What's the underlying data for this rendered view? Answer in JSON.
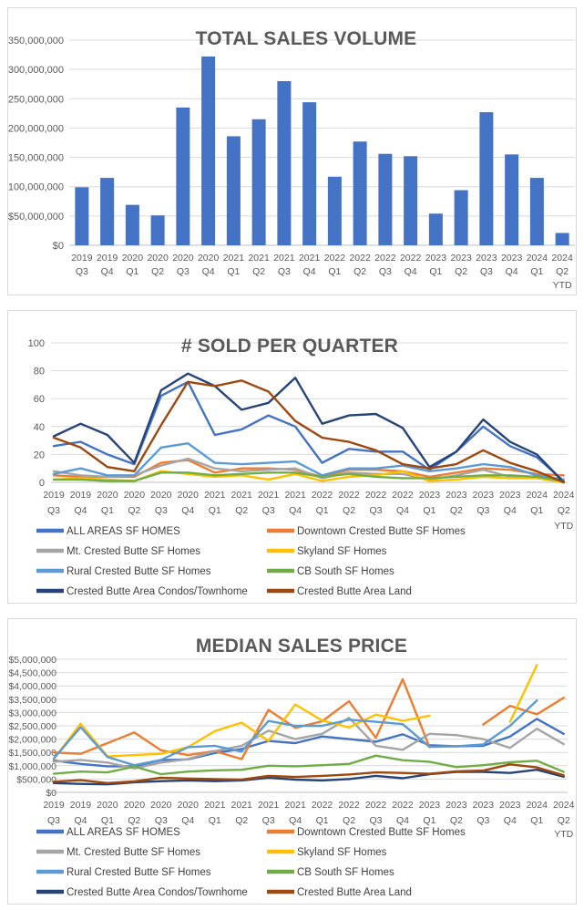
{
  "page": {
    "background": "#ffffff",
    "panel_border_color": "#d9d9d9",
    "gridline_color": "#d9d9d9",
    "axis_line_color": "#bfbfbf",
    "title_color": "#595959",
    "tick_label_color": "#595959"
  },
  "chart_data": [
    {
      "type": "bar",
      "title": "TOTAL SALES VOLUME",
      "ylabel": "",
      "xlabel": "",
      "ylim": [
        0,
        350000000
      ],
      "grid": true,
      "bar_color": "#4472C4",
      "y_tick_labels": [
        "$0",
        "$50,000,000",
        "$100,000,000",
        "$150,000,000",
        "$200,000,000",
        "$250,000,000",
        "$300,000,000",
        "$350,000,000"
      ],
      "categories": [
        "2019 Q3",
        "2019 Q4",
        "2020 Q1",
        "2020 Q2",
        "2020 Q3",
        "2020 Q4",
        "2021 Q1",
        "2021 Q2",
        "2021 Q3",
        "2021 Q4",
        "2022 Q1",
        "2022 Q2",
        "2022 Q3",
        "2022 Q4",
        "2023 Q1",
        "2023 Q2",
        "2023 Q3",
        "2023 Q4",
        "2024 Q1",
        "2024 Q2 YTD"
      ],
      "values": [
        99000000,
        115000000,
        69000000,
        51000000,
        235000000,
        322000000,
        186000000,
        215000000,
        280000000,
        244000000,
        117000000,
        177000000,
        156000000,
        152000000,
        54000000,
        94000000,
        227000000,
        155000000,
        115000000,
        21000000
      ]
    },
    {
      "type": "line",
      "title": "# SOLD PER QUARTER",
      "ylabel": "",
      "xlabel": "",
      "ylim": [
        0,
        100
      ],
      "grid": true,
      "legend_position": "bottom-two-columns",
      "y_tick_labels": [
        "0",
        "20",
        "40",
        "60",
        "80",
        "100"
      ],
      "categories": [
        "2019 Q3",
        "2019 Q4",
        "2020 Q1",
        "2020 Q2",
        "2020 Q3",
        "2020 Q4",
        "2021 Q1",
        "2021 Q2",
        "2021 Q3",
        "2021 Q4",
        "2022 Q1",
        "2022 Q2",
        "2022 Q3",
        "2022 Q4",
        "2023 Q1",
        "2023 Q2",
        "2023 Q3",
        "2023 Q4",
        "2024 Q1",
        "2024 Q2 YTD"
      ],
      "series": [
        {
          "name": "ALL AREAS SF HOMES",
          "color": "#4472C4",
          "values": [
            26,
            29,
            20,
            13,
            62,
            72,
            34,
            38,
            48,
            40,
            14,
            24,
            22,
            22,
            9,
            22,
            40,
            26,
            18,
            1
          ]
        },
        {
          "name": "Downtown Crested Butte SF Homes",
          "color": "#ED7D31",
          "values": [
            5,
            4,
            4,
            4,
            14,
            16,
            7,
            10,
            10,
            9,
            4,
            9,
            9,
            8,
            4,
            7,
            10,
            9,
            6,
            5
          ]
        },
        {
          "name": "Mt. Crested Butte SF Homes",
          "color": "#A5A5A5",
          "values": [
            8,
            5,
            4,
            5,
            12,
            17,
            10,
            8,
            9,
            10,
            3,
            7,
            6,
            6,
            2,
            5,
            9,
            4,
            4,
            2
          ]
        },
        {
          "name": "Skyland SF Homes",
          "color": "#FFC000",
          "values": [
            2,
            3,
            2,
            1,
            8,
            6,
            4,
            5,
            2,
            6,
            1,
            4,
            5,
            8,
            1,
            2,
            4,
            3,
            3,
            0
          ]
        },
        {
          "name": "Rural Crested Butte SF Homes",
          "color": "#5B9BD5",
          "values": [
            6,
            10,
            5,
            5,
            25,
            28,
            14,
            13,
            14,
            15,
            5,
            10,
            10,
            12,
            8,
            10,
            13,
            11,
            5,
            2
          ]
        },
        {
          "name": "CB South SF Homes",
          "color": "#70AD47",
          "values": [
            2,
            2,
            1,
            1,
            7,
            7,
            5,
            6,
            7,
            7,
            4,
            6,
            4,
            3,
            3,
            4,
            5,
            5,
            4,
            1
          ]
        },
        {
          "name": "Crested Butte Area Condos/Townhome",
          "color": "#264478",
          "values": [
            33,
            42,
            34,
            14,
            66,
            78,
            69,
            52,
            57,
            75,
            42,
            48,
            49,
            39,
            11,
            22,
            45,
            29,
            20,
            0
          ]
        },
        {
          "name": "Crested Butte Area Land",
          "color": "#9E480E",
          "values": [
            32,
            25,
            11,
            8,
            41,
            72,
            69,
            73,
            65,
            44,
            32,
            29,
            23,
            13,
            10,
            13,
            23,
            14,
            8,
            0
          ]
        }
      ]
    },
    {
      "type": "line",
      "title": "MEDIAN SALES PRICE",
      "ylabel": "",
      "xlabel": "",
      "ylim": [
        0,
        5000000
      ],
      "grid": true,
      "legend_position": "bottom-two-columns",
      "y_tick_labels": [
        "$0",
        "$500,000",
        "$1,000,000",
        "$1,500,000",
        "$2,000,000",
        "$2,500,000",
        "$3,000,000",
        "$3,500,000",
        "$4,000,000",
        "$4,500,000",
        "$5,000,000"
      ],
      "categories": [
        "2019 Q3",
        "2019 Q4",
        "2020 Q1",
        "2020 Q2",
        "2020 Q3",
        "2020 Q4",
        "2021 Q1",
        "2021 Q2",
        "2021 Q3",
        "2021 Q4",
        "2022 Q1",
        "2022 Q2",
        "2022 Q3",
        "2022 Q4",
        "2023 Q1",
        "2023 Q2",
        "2023 Q3",
        "2023 Q4",
        "2024 Q1",
        "2024 Q2 YTD"
      ],
      "series": [
        {
          "name": "ALL AREAS SF HOMES",
          "color": "#4472C4",
          "values": [
            1200000,
            1070000,
            980000,
            980000,
            1210000,
            1240000,
            1480000,
            1630000,
            1930000,
            1850000,
            2100000,
            2000000,
            1900000,
            2180000,
            1770000,
            1730000,
            1750000,
            2100000,
            2760000,
            2200000
          ]
        },
        {
          "name": "Downtown Crested Butte SF Homes",
          "color": "#ED7D31",
          "values": [
            1500000,
            1450000,
            1850000,
            2250000,
            1580000,
            1400000,
            1550000,
            1250000,
            3100000,
            2420000,
            2670000,
            3420000,
            2050000,
            4250000,
            1700000,
            null,
            2550000,
            3250000,
            2930000,
            3550000
          ]
        },
        {
          "name": "Mt. Crested Butte SF Homes",
          "color": "#A5A5A5",
          "values": [
            1150000,
            1220000,
            1120000,
            900000,
            1120000,
            1250000,
            1550000,
            1750000,
            2320000,
            2000000,
            2200000,
            2800000,
            1750000,
            1600000,
            2200000,
            2150000,
            2000000,
            1670000,
            2390000,
            1810000
          ]
        },
        {
          "name": "Skyland SF Homes",
          "color": "#FFC000",
          "values": [
            1250000,
            2580000,
            1350000,
            1400000,
            1450000,
            1700000,
            2300000,
            2620000,
            1930000,
            3300000,
            2700000,
            2440000,
            2920000,
            2690000,
            2880000,
            null,
            null,
            2650000,
            4780000,
            null
          ]
        },
        {
          "name": "Rural Crested Butte SF Homes",
          "color": "#5B9BD5",
          "values": [
            1270000,
            2450000,
            1330000,
            1020000,
            1220000,
            1700000,
            1750000,
            1530000,
            2680000,
            2500000,
            2500000,
            2730000,
            2650000,
            2560000,
            1710000,
            1730000,
            1800000,
            2500000,
            3450000,
            null
          ]
        },
        {
          "name": "CB South SF Homes",
          "color": "#70AD47",
          "values": [
            700000,
            780000,
            750000,
            970000,
            680000,
            780000,
            830000,
            850000,
            1000000,
            980000,
            1020000,
            1070000,
            1380000,
            1210000,
            1150000,
            950000,
            1020000,
            1130000,
            1190000,
            770000
          ]
        },
        {
          "name": "Crested Butte Area Condos/Townhome",
          "color": "#264478",
          "values": [
            350000,
            320000,
            300000,
            380000,
            420000,
            450000,
            420000,
            450000,
            550000,
            480000,
            450000,
            500000,
            620000,
            530000,
            680000,
            770000,
            770000,
            730000,
            850000,
            590000
          ]
        },
        {
          "name": "Crested Butte Area Land",
          "color": "#9E480E",
          "values": [
            400000,
            460000,
            350000,
            410000,
            550000,
            520000,
            500000,
            480000,
            620000,
            580000,
            620000,
            670000,
            750000,
            730000,
            700000,
            790000,
            820000,
            1050000,
            940000,
            640000
          ]
        }
      ]
    }
  ]
}
